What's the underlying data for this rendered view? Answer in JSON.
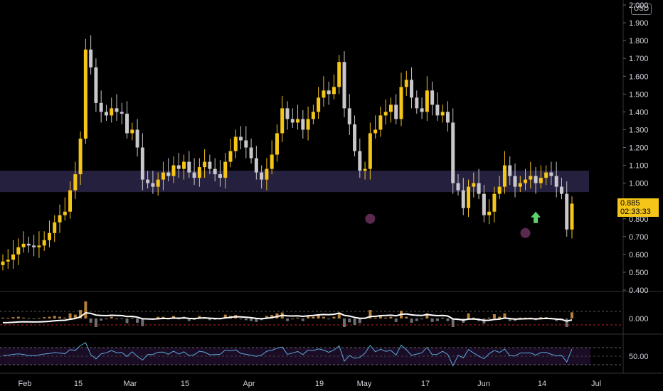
{
  "currency": "USD",
  "last_price": "0.885",
  "countdown": "02:33:33",
  "colors": {
    "up": "#f5c518",
    "down": "#c8c8cc",
    "zone": "#2a2446",
    "volume_up": "#b5803a",
    "volume_down": "#6e6e74",
    "rsi_line": "#5aa8d8",
    "rsi_band": "#1b0c26"
  },
  "chart_data": {
    "type": "candlestick",
    "price_axis": {
      "ticks": [
        "0.400",
        "0.500",
        "0.600",
        "0.700",
        "0.800",
        "0.900",
        "1.000",
        "1.100",
        "1.200",
        "1.300",
        "1.400",
        "1.500",
        "1.600",
        "1.700",
        "1.800",
        "1.900",
        "2.000"
      ],
      "ylim": [
        0.4,
        2.0
      ]
    },
    "time_axis": {
      "labels": [
        "Feb",
        "15",
        "Mar",
        "15",
        "Apr",
        "19",
        "May",
        "17",
        "Jun",
        "14",
        "Jul"
      ]
    },
    "support_zone": [
      0.95,
      1.07
    ],
    "markers": [
      {
        "type": "circle",
        "candle": 71,
        "price": 0.8
      },
      {
        "type": "circle",
        "candle": 101,
        "price": 0.72
      },
      {
        "type": "arrow-up",
        "candle": 103,
        "price": 0.8
      }
    ],
    "candles_close": [
      0.56,
      0.57,
      0.6,
      0.64,
      0.66,
      0.65,
      0.64,
      0.65,
      0.68,
      0.72,
      0.78,
      0.82,
      0.84,
      0.96,
      1.05,
      1.25,
      1.75,
      1.65,
      1.45,
      1.4,
      1.38,
      1.42,
      1.4,
      1.39,
      1.28,
      1.3,
      1.2,
      1.02,
      1.0,
      0.98,
      1.02,
      1.06,
      1.04,
      1.1,
      1.08,
      1.12,
      1.06,
      1.03,
      1.09,
      1.12,
      1.08,
      1.05,
      1.03,
      1.12,
      1.18,
      1.26,
      1.24,
      1.2,
      1.14,
      1.06,
      1.02,
      1.08,
      1.16,
      1.28,
      1.42,
      1.36,
      1.34,
      1.36,
      1.3,
      1.36,
      1.4,
      1.48,
      1.52,
      1.5,
      1.54,
      1.68,
      1.42,
      1.33,
      1.18,
      1.07,
      1.08,
      1.28,
      1.3,
      1.38,
      1.4,
      1.44,
      1.36,
      1.54,
      1.58,
      1.48,
      1.42,
      1.4,
      1.52,
      1.44,
      1.38,
      1.4,
      1.34,
      1.0,
      0.96,
      0.86,
      0.98,
      1.0,
      0.94,
      0.82,
      0.84,
      0.94,
      0.98,
      1.1,
      1.04,
      0.98,
      1.0,
      1.02,
      1.04,
      1.0,
      1.03,
      1.06,
      1.04,
      0.98,
      0.94,
      0.74,
      0.885
    ],
    "volume_oscillator": {
      "ylim": [
        -0.35,
        0.35
      ],
      "ticks": [
        "0.000"
      ]
    },
    "rsi": {
      "ticks": [
        "50.00"
      ],
      "band": [
        30,
        70
      ],
      "ylim": [
        0,
        100
      ]
    }
  }
}
